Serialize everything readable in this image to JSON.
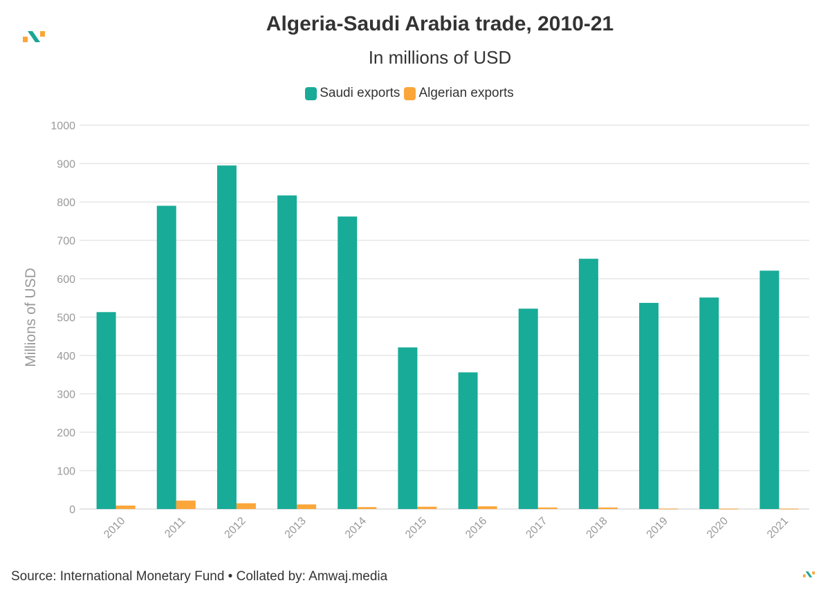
{
  "header": {
    "title": "Algeria-Saudi Arabia trade, 2010-21",
    "subtitle": "In millions of USD"
  },
  "footer": {
    "source": "Source: International Monetary Fund • Collated by: Amwaj.media"
  },
  "colors": {
    "saudi": "#18ab98",
    "algerian": "#fba63a",
    "grid": "#e6e6e6",
    "axis_text": "#999999"
  },
  "chart_data": {
    "type": "bar",
    "categories": [
      "2010",
      "2011",
      "2012",
      "2013",
      "2014",
      "2015",
      "2016",
      "2017",
      "2018",
      "2019",
      "2020",
      "2021"
    ],
    "series": [
      {
        "name": "Saudi exports",
        "values": [
          513,
          790,
          895,
          817,
          762,
          421,
          356,
          522,
          652,
          537,
          551,
          621
        ]
      },
      {
        "name": "Algerian exports",
        "values": [
          9,
          22,
          15,
          12,
          5,
          6,
          7,
          4,
          4,
          1,
          1,
          1
        ]
      }
    ],
    "ylabel": "Millions of USD",
    "xlabel": "",
    "ylim": [
      0,
      1000
    ],
    "yticks": [
      0,
      100,
      200,
      300,
      400,
      500,
      600,
      700,
      800,
      900,
      1000
    ],
    "grid": true,
    "legend": "top-center"
  }
}
